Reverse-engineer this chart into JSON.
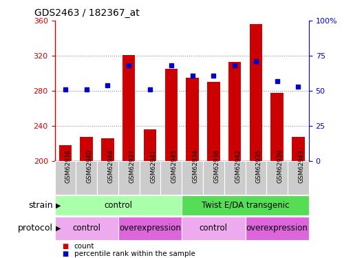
{
  "title": "GDS2463 / 182367_at",
  "samples": [
    "GSM62936",
    "GSM62940",
    "GSM62944",
    "GSM62937",
    "GSM62941",
    "GSM62945",
    "GSM62934",
    "GSM62938",
    "GSM62942",
    "GSM62935",
    "GSM62939",
    "GSM62943"
  ],
  "counts": [
    218,
    228,
    226,
    321,
    236,
    305,
    295,
    290,
    313,
    356,
    278,
    228
  ],
  "percentiles": [
    51,
    51,
    54,
    68,
    51,
    68,
    61,
    61,
    68,
    71,
    57,
    53
  ],
  "bar_color": "#cc0000",
  "dot_color": "#0000cc",
  "ylim_left": [
    200,
    360
  ],
  "ylim_right": [
    0,
    100
  ],
  "yticks_left": [
    200,
    240,
    280,
    320,
    360
  ],
  "yticks_right": [
    0,
    25,
    50,
    75,
    100
  ],
  "yticklabels_right": [
    "0",
    "25",
    "50",
    "75",
    "100%"
  ],
  "grid_values": [
    240,
    280,
    320
  ],
  "strain_labels": [
    {
      "text": "control",
      "start": 0,
      "end": 6,
      "color": "#aaffaa"
    },
    {
      "text": "Twist E/DA transgenic",
      "start": 6,
      "end": 12,
      "color": "#55dd55"
    }
  ],
  "protocol_labels": [
    {
      "text": "control",
      "start": 0,
      "end": 3,
      "color": "#eeaaee"
    },
    {
      "text": "overexpression",
      "start": 3,
      "end": 6,
      "color": "#dd66dd"
    },
    {
      "text": "control",
      "start": 6,
      "end": 9,
      "color": "#eeaaee"
    },
    {
      "text": "overexpression",
      "start": 9,
      "end": 12,
      "color": "#dd66dd"
    }
  ],
  "legend_items": [
    {
      "label": "count",
      "color": "#cc0000"
    },
    {
      "label": "percentile rank within the sample",
      "color": "#0000cc"
    }
  ],
  "strain_row_label": "strain",
  "protocol_row_label": "protocol",
  "bg_color": "#ffffff",
  "plot_bg_color": "#ffffff",
  "tick_label_color_left": "#cc0000",
  "tick_label_color_right": "#0000cc",
  "bar_bottom": 200,
  "sample_cell_color": "#cccccc"
}
